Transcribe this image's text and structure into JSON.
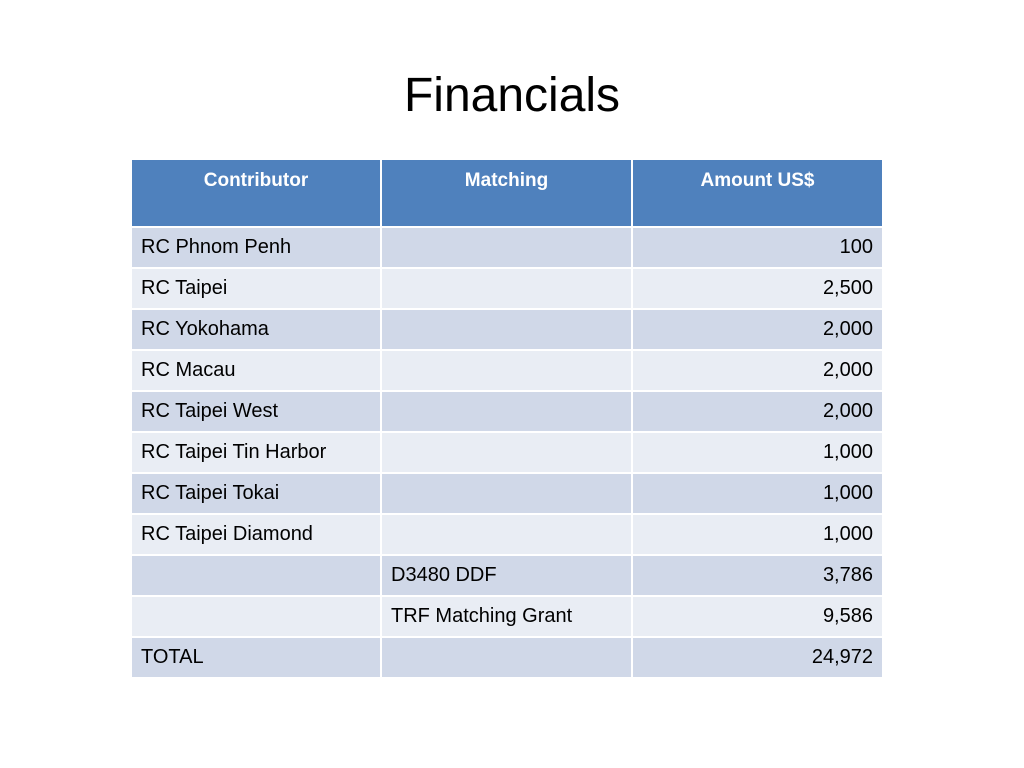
{
  "title": "Financials",
  "table": {
    "headers": [
      "Contributor",
      "Matching",
      "Amount US$"
    ],
    "rows": [
      [
        "RC Phnom Penh",
        null,
        "100"
      ],
      [
        "RC Taipei",
        null,
        "2,500"
      ],
      [
        "RC Yokohama",
        null,
        "2,000"
      ],
      [
        "RC Macau",
        null,
        "2,000"
      ],
      [
        "RC Taipei West",
        null,
        "2,000"
      ],
      [
        "RC Taipei Tin Harbor",
        null,
        "1,000"
      ],
      [
        "RC Taipei Tokai",
        null,
        "1,000"
      ],
      [
        "RC Taipei Diamond",
        null,
        "1,000"
      ],
      [
        null,
        "D3480 DDF",
        "3,786"
      ],
      [
        null,
        "TRF Matching Grant",
        "9,586"
      ],
      [
        "TOTAL",
        null,
        "24,972"
      ]
    ]
  }
}
